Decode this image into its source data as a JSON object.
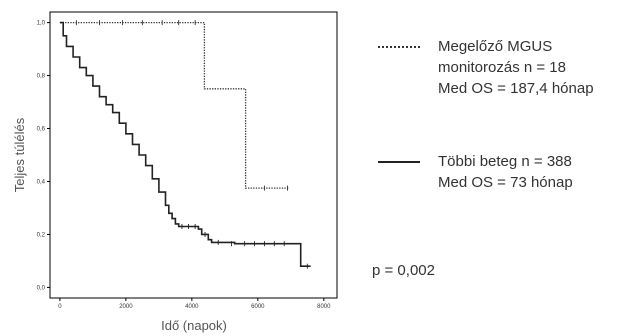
{
  "chart_data": {
    "type": "line",
    "subtype": "kaplan-meier",
    "xlabel": "Idő (napok)",
    "ylabel": "Teljes túlélés",
    "xlim": [
      -300,
      8400
    ],
    "ylim": [
      -0.04,
      1.04
    ],
    "xticks": [
      0,
      2000,
      4000,
      6000,
      8000
    ],
    "yticks": [
      0.0,
      0.2,
      0.4,
      0.6,
      0.8,
      1.0
    ],
    "ytick_labels": [
      "0,0",
      "0,2",
      "0,4",
      "0,6",
      "0,8",
      "1,0"
    ],
    "frame_color": "#000000",
    "series": [
      {
        "name": "Megelőző MGUS monitorozás n = 18",
        "style": "dotted",
        "color": "#333333",
        "x": [
          0,
          4380,
          4380,
          5630,
          5630,
          6950
        ],
        "y": [
          1.0,
          1.0,
          0.75,
          0.75,
          0.375,
          0.375
        ],
        "censor_x": [
          500,
          1200,
          1900,
          2500,
          3100,
          3600,
          4100,
          6200,
          6900
        ],
        "censor_y": [
          1.0,
          1.0,
          1.0,
          1.0,
          1.0,
          1.0,
          1.0,
          0.375,
          0.375
        ]
      },
      {
        "name": "Többi beteg n = 388",
        "style": "solid",
        "color": "#222222",
        "x": [
          0,
          100,
          200,
          400,
          600,
          800,
          1000,
          1200,
          1400,
          1600,
          1800,
          2000,
          2200,
          2400,
          2600,
          2800,
          3000,
          3200,
          3300,
          3400,
          3500,
          3600,
          3700,
          3900,
          4200,
          4300,
          4500,
          4600,
          4900,
          5300,
          6000,
          6600,
          7200,
          7300,
          7600
        ],
        "y": [
          1.0,
          0.95,
          0.91,
          0.87,
          0.83,
          0.8,
          0.76,
          0.72,
          0.69,
          0.66,
          0.62,
          0.58,
          0.54,
          0.5,
          0.46,
          0.41,
          0.36,
          0.31,
          0.28,
          0.26,
          0.24,
          0.23,
          0.23,
          0.23,
          0.22,
          0.2,
          0.18,
          0.17,
          0.17,
          0.165,
          0.165,
          0.165,
          0.165,
          0.08,
          0.08
        ],
        "censor_x": [
          3700,
          3900,
          4100,
          4400,
          4800,
          5200,
          5600,
          5900,
          6200,
          6500,
          6800,
          7500
        ],
        "censor_y": [
          0.23,
          0.23,
          0.23,
          0.2,
          0.17,
          0.165,
          0.165,
          0.165,
          0.165,
          0.165,
          0.165,
          0.08
        ]
      }
    ]
  },
  "legend": {
    "mgus_line1": "Megelőző MGUS",
    "mgus_line2": "monitorozás n = 18",
    "mgus_line3": "Med OS = 187,4 hónap",
    "others_line1": "Többi beteg n = 388",
    "others_line2": "Med OS = 73 hónap"
  },
  "pvalue": "p = 0,002"
}
